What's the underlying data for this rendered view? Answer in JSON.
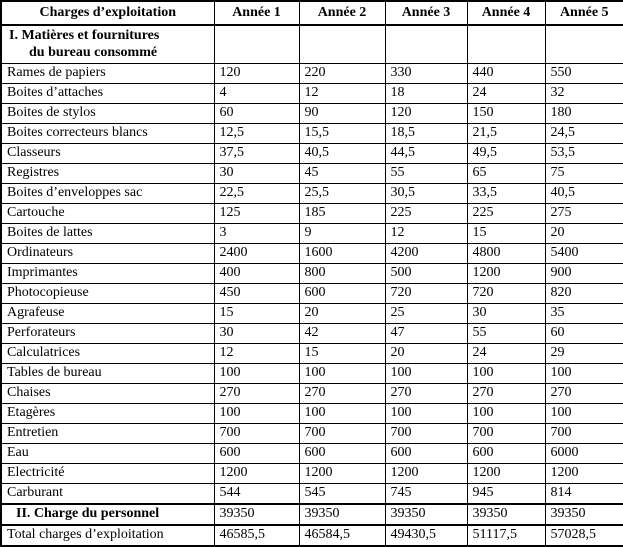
{
  "colors": {
    "border": "#000000",
    "text": "#000000",
    "background": "#ffffff"
  },
  "table": {
    "header": {
      "col0": "Charges d’exploitation",
      "years": [
        "Année 1",
        "Année 2",
        "Année 3",
        "Année 4",
        "Année 5"
      ]
    },
    "section1": {
      "line1": "I. Matières et fournitures",
      "line2": "du bureau consommé"
    },
    "rows": [
      {
        "label": "Rames de papiers",
        "values": [
          "120",
          "220",
          "330",
          "440",
          "550"
        ]
      },
      {
        "label": "Boites d’attaches",
        "values": [
          "4",
          "12",
          "18",
          "24",
          "32"
        ]
      },
      {
        "label": "Boites de stylos",
        "values": [
          "60",
          "90",
          "120",
          "150",
          "180"
        ]
      },
      {
        "label": "Boites correcteurs blancs",
        "values": [
          "12,5",
          "15,5",
          "18,5",
          "21,5",
          "24,5"
        ]
      },
      {
        "label": "Classeurs",
        "values": [
          "37,5",
          "40,5",
          "44,5",
          "49,5",
          "53,5"
        ]
      },
      {
        "label": "Registres",
        "values": [
          "30",
          "45",
          "55",
          "65",
          "75"
        ]
      },
      {
        "label": "Boites d’enveloppes sac",
        "values": [
          "22,5",
          "25,5",
          "30,5",
          "33,5",
          "40,5"
        ]
      },
      {
        "label": "Cartouche",
        "values": [
          "125",
          "185",
          "225",
          "225",
          "275"
        ]
      },
      {
        "label": "Boites de lattes",
        "values": [
          "3",
          "9",
          "12",
          "15",
          "20"
        ]
      },
      {
        "label": "Ordinateurs",
        "values": [
          "2400",
          "1600",
          "4200",
          "4800",
          "5400"
        ]
      },
      {
        "label": "Imprimantes",
        "values": [
          "400",
          "800",
          "500",
          "1200",
          "900"
        ]
      },
      {
        "label": "Photocopieuse",
        "values": [
          "450",
          "600",
          "720",
          "720",
          "820"
        ]
      },
      {
        "label": "Agrafeuse",
        "values": [
          "15",
          "20",
          "25",
          "30",
          "35"
        ]
      },
      {
        "label": "Perforateurs",
        "values": [
          "30",
          "42",
          "47",
          "55",
          "60"
        ]
      },
      {
        "label": "Calculatrices",
        "values": [
          "12",
          "15",
          "20",
          "24",
          "29"
        ]
      },
      {
        "label": "Tables de bureau",
        "values": [
          "100",
          "100",
          "100",
          "100",
          "100"
        ]
      },
      {
        "label": "Chaises",
        "values": [
          "270",
          "270",
          "270",
          "270",
          "270"
        ]
      },
      {
        "label": "Etagères",
        "values": [
          "100",
          "100",
          "100",
          "100",
          "100"
        ]
      },
      {
        "label": "Entretien",
        "values": [
          "700",
          "700",
          "700",
          "700",
          "700"
        ]
      },
      {
        "label": "Eau",
        "values": [
          "600",
          "600",
          "600",
          "600",
          "6000"
        ]
      },
      {
        "label": "Electricité",
        "values": [
          "1200",
          "1200",
          "1200",
          "1200",
          "1200"
        ]
      },
      {
        "label": "Carburant",
        "values": [
          "544",
          "545",
          "745",
          "945",
          "814"
        ]
      }
    ],
    "personnel": {
      "label": "II.  Charge du personnel",
      "values": [
        "39350",
        "39350",
        "39350",
        "39350",
        "39350"
      ]
    },
    "total": {
      "label": "Total charges d’exploitation",
      "values": [
        "46585,5",
        "46584,5",
        "49430,5",
        "51117,5",
        "57028,5"
      ]
    }
  }
}
